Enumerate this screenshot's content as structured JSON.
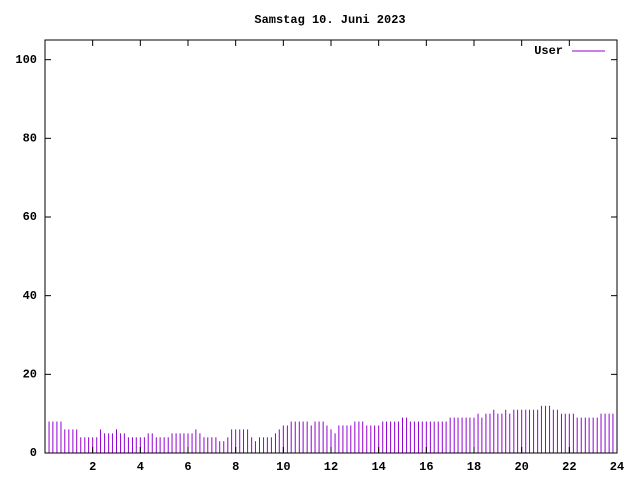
{
  "chart_data": {
    "type": "bar",
    "title": "Samstag 10. Juni 2023",
    "x": [
      0,
      0.17,
      0.33,
      0.5,
      0.67,
      0.83,
      1,
      1.17,
      1.33,
      1.5,
      1.67,
      1.83,
      2,
      2.17,
      2.33,
      2.5,
      2.67,
      2.83,
      3,
      3.17,
      3.33,
      3.5,
      3.67,
      3.83,
      4,
      4.17,
      4.33,
      4.5,
      4.67,
      4.83,
      5,
      5.17,
      5.33,
      5.5,
      5.67,
      5.83,
      6,
      6.17,
      6.33,
      6.5,
      6.67,
      6.83,
      7,
      7.17,
      7.33,
      7.5,
      7.67,
      7.83,
      8,
      8.17,
      8.33,
      8.5,
      8.67,
      8.83,
      9,
      9.17,
      9.33,
      9.5,
      9.67,
      9.83,
      10,
      10.17,
      10.33,
      10.5,
      10.67,
      10.83,
      11,
      11.17,
      11.33,
      11.5,
      11.67,
      11.83,
      12,
      12.17,
      12.33,
      12.5,
      12.67,
      12.83,
      13,
      13.17,
      13.33,
      13.5,
      13.67,
      13.83,
      14,
      14.17,
      14.33,
      14.5,
      14.67,
      14.83,
      15,
      15.17,
      15.33,
      15.5,
      15.67,
      15.83,
      16,
      16.17,
      16.33,
      16.5,
      16.67,
      16.83,
      17,
      17.17,
      17.33,
      17.5,
      17.67,
      17.83,
      18,
      18.17,
      18.33,
      18.5,
      18.67,
      18.83,
      19,
      19.17,
      19.33,
      19.5,
      19.67,
      19.83,
      20,
      20.17,
      20.33,
      20.5,
      20.67,
      20.83,
      21,
      21.17,
      21.33,
      21.5,
      21.67,
      21.83,
      22,
      22.17,
      22.33,
      22.5,
      22.67,
      22.83,
      23,
      23.17,
      23.33,
      23.5,
      23.67,
      23.83
    ],
    "series": [
      {
        "name": "User",
        "color": "#9400d3",
        "values": [
          8,
          8,
          8,
          8,
          8,
          6,
          6,
          6,
          6,
          4,
          4,
          4,
          4,
          4,
          6,
          5,
          5,
          5,
          6,
          5,
          5,
          4,
          4,
          4,
          4,
          4,
          5,
          5,
          4,
          4,
          4,
          4,
          5,
          5,
          5,
          5,
          5,
          5,
          6,
          5,
          4,
          4,
          4,
          4,
          3,
          3,
          4,
          6,
          6,
          6,
          6,
          6,
          4,
          3,
          4,
          4,
          4,
          4,
          5,
          6,
          7,
          7,
          8,
          8,
          8,
          8,
          8,
          7,
          8,
          8,
          8,
          7,
          6,
          5,
          7,
          7,
          7,
          7,
          8,
          8,
          8,
          7,
          7,
          7,
          7,
          8,
          8,
          8,
          8,
          8,
          9,
          9,
          8,
          8,
          8,
          8,
          8,
          8,
          8,
          8,
          8,
          8,
          9,
          9,
          9,
          9,
          9,
          9,
          9,
          10,
          9,
          10,
          10,
          11,
          10,
          10,
          11,
          10,
          11,
          11,
          11,
          11,
          11,
          11,
          11,
          12,
          12,
          12,
          11,
          11,
          10,
          10,
          10,
          10,
          9,
          9,
          9,
          9,
          9,
          9,
          10,
          10,
          10,
          10
        ]
      }
    ],
    "xlim": [
      0,
      24
    ],
    "xticks": [
      2,
      4,
      6,
      8,
      10,
      12,
      14,
      16,
      18,
      20,
      22,
      24
    ],
    "ylim": [
      0,
      105
    ],
    "yticks": [
      0,
      20,
      40,
      60,
      80,
      100
    ],
    "legend": "top-right"
  }
}
